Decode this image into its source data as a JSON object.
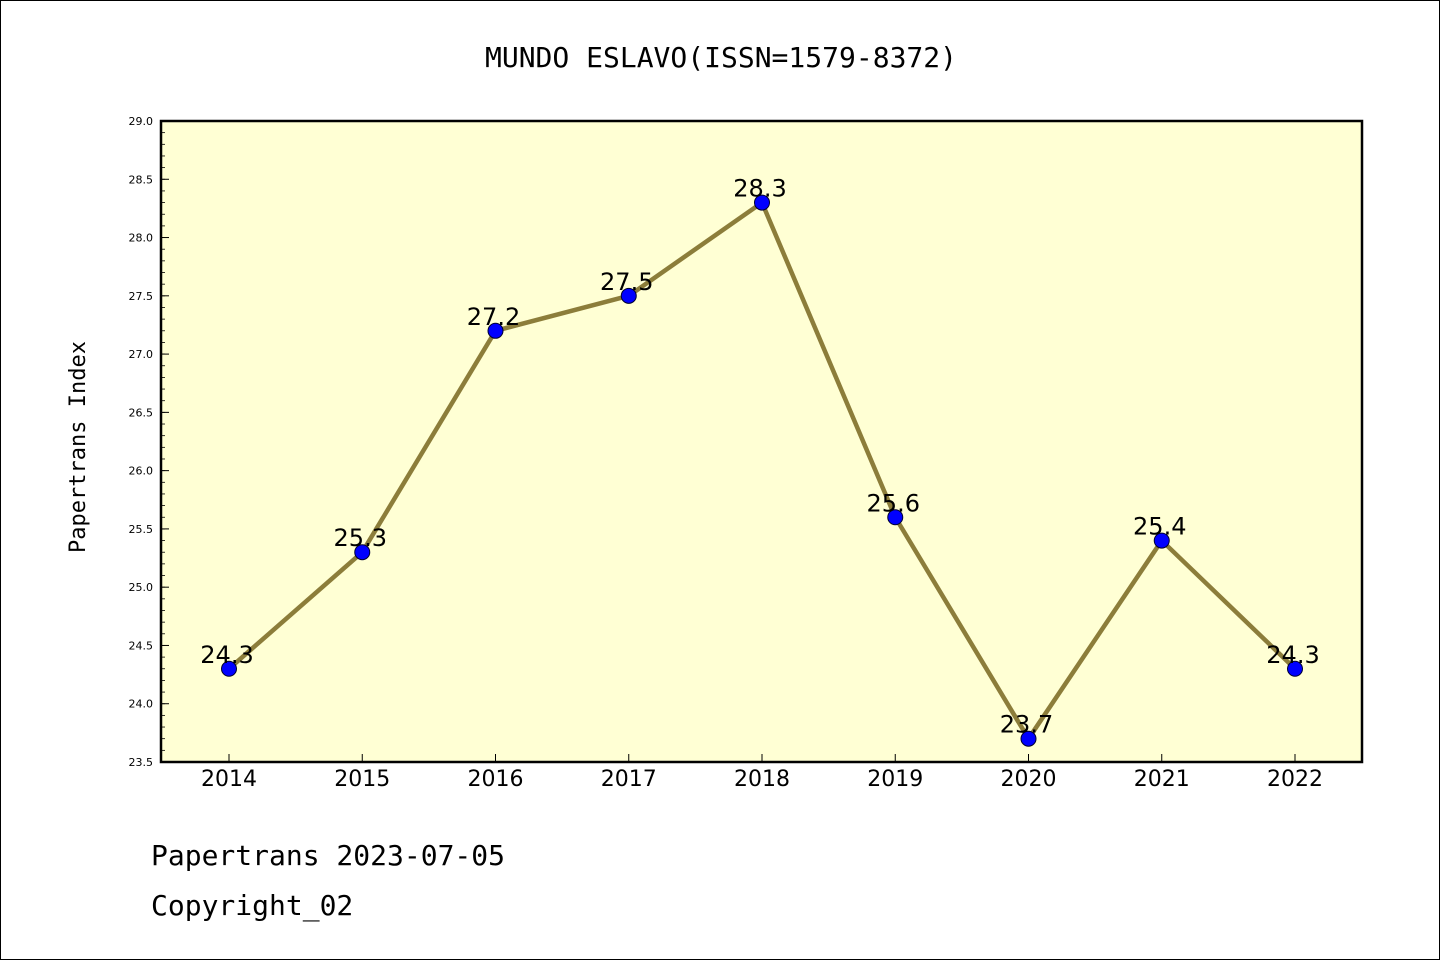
{
  "chart_data": {
    "type": "line",
    "title": "MUNDO ESLAVO(ISSN=1579-8372)",
    "xlabel": "",
    "ylabel": "Papertrans Index",
    "categories": [
      "2014",
      "2015",
      "2016",
      "2017",
      "2018",
      "2019",
      "2020",
      "2021",
      "2022"
    ],
    "series": [
      {
        "values": [
          24.3,
          25.3,
          27.2,
          27.5,
          28.3,
          25.6,
          23.7,
          25.4,
          24.3
        ],
        "labels": [
          "24.3",
          "25.3",
          "27.2",
          "27.5",
          "28.3",
          "25.6",
          "23.7",
          "25.4",
          "24.3"
        ],
        "line_color": "#8c7d3a",
        "marker_color": "#0000ff"
      }
    ],
    "ylim": [
      23.5,
      29.0
    ],
    "yticks": [
      "23.5",
      "24.0",
      "24.5",
      "25.0",
      "25.5",
      "26.0",
      "26.5",
      "27.0",
      "27.5",
      "28.0",
      "28.5",
      "29.0"
    ],
    "grid": false,
    "plot_background": "#ffffd4"
  },
  "footer": {
    "line1": "Papertrans 2023-07-05",
    "line2": "Copyright_02"
  }
}
